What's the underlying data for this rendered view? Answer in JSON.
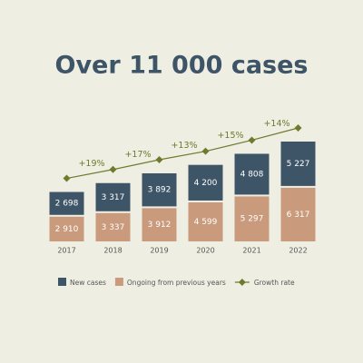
{
  "chart_data": {
    "type": "bar",
    "stacked": true,
    "title": "Over 11 000 cases",
    "categories": [
      "2017",
      "2018",
      "2019",
      "2020",
      "2021",
      "2022"
    ],
    "series": [
      {
        "name": "New cases",
        "color": "#3e5568",
        "values": [
          2698,
          3317,
          3892,
          4200,
          4808,
          5227
        ],
        "value_labels": [
          "2 698",
          "3 317",
          "3 892",
          "4 200",
          "4 808",
          "5 227"
        ]
      },
      {
        "name": "Ongoing from previous years",
        "color": "#c99a7c",
        "values": [
          2910,
          3337,
          3912,
          4599,
          5297,
          6317
        ],
        "value_labels": [
          "2 910",
          "3 337",
          "3 912",
          "4 599",
          "5 297",
          "6 317"
        ]
      },
      {
        "name": "Growth rate",
        "type": "line",
        "color": "#6e7b2c",
        "values": [
          null,
          19,
          17,
          13,
          15,
          14
        ],
        "value_labels": [
          null,
          "+19%",
          "+17%",
          "+13%",
          "+15%",
          "+14%"
        ]
      }
    ]
  }
}
